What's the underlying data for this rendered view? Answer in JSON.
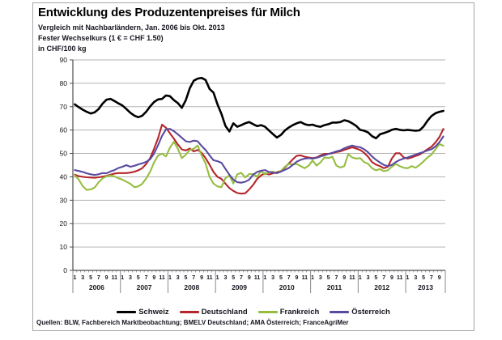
{
  "header": {
    "title": "Entwicklung des Produzentenpreises für Milch",
    "subtitle1": "Vergleich mit Nachbarländern, Jan. 2006 bis Okt. 2013",
    "subtitle2": "Fester Wechselkurs (1 € = CHF 1.50)",
    "subtitle3": "in CHF/100 kg"
  },
  "source_line": "Quellen: BLW, Fachbereich Marktbeobachtung; BMELV Deutschland; AMA Österreich; FranceAgriMer",
  "colors": {
    "grid": "#b3b3b3",
    "axis": "#4d4d4d",
    "frame": "#a6a6a6",
    "text": "#15151f",
    "schweiz": "#000000",
    "deutschland": "#b5262b",
    "frankreich": "#96bd40",
    "oesterreich": "#5a4a9f"
  },
  "chart_data": {
    "type": "line",
    "title": "Entwicklung des Produzentenpreises für Milch",
    "subtitle": "Vergleich mit Nachbarländern, Jan. 2006 bis Okt. 2013",
    "ylabel": "in CHF/100 kg",
    "grid": true,
    "legend_position": "bottom",
    "y_axis": {
      "min": 0,
      "max": 90,
      "step": 10
    },
    "x_axis": {
      "years": [
        2006,
        2007,
        2008,
        2009,
        2010,
        2011,
        2012,
        2013
      ],
      "months_in_last_year": 10,
      "month_tick_labels": [
        1,
        3,
        5,
        7,
        9,
        11
      ]
    },
    "series": [
      {
        "name": "Schweiz",
        "color": "#000000",
        "line_width": 2.6,
        "values": [
          71,
          69.8,
          68.7,
          67.8,
          67.1,
          67.6,
          69,
          71.3,
          73,
          73.3,
          72.4,
          71.4,
          70.5,
          69,
          67.4,
          66.2,
          65.5,
          66.1,
          67.8,
          70.1,
          72,
          73.1,
          73.3,
          74.8,
          74.5,
          72.8,
          71.5,
          69.5,
          72.8,
          77.9,
          81.1,
          82,
          82.3,
          81.4,
          77.6,
          76,
          71,
          66.9,
          61.8,
          59.4,
          62.9,
          61.4,
          62.1,
          62.9,
          63.4,
          62.5,
          61.7,
          62.1,
          61.4,
          59.8,
          58.3,
          56.8,
          57.9,
          59.8,
          61.1,
          62.1,
          62.9,
          63.4,
          62.5,
          62.1,
          62.3,
          61.7,
          61.4,
          62.1,
          62.5,
          63.2,
          63.2,
          63.4,
          64.2,
          63.8,
          62.9,
          61.8,
          60.1,
          59.7,
          59,
          57.4,
          56.5,
          58.2,
          58.7,
          59.3,
          60.1,
          60.5,
          60.1,
          59.9,
          60.1,
          59.9,
          59.7,
          59.9,
          61.5,
          64,
          66,
          67.2,
          67.8,
          68.2
        ]
      },
      {
        "name": "Deutschland",
        "color": "#b5262b",
        "line_width": 2.1,
        "values": [
          40.9,
          40.3,
          40,
          39.8,
          39.7,
          39.6,
          39.8,
          40.1,
          40.4,
          40.9,
          41.4,
          41.6,
          41.6,
          41.6,
          41.8,
          42.2,
          42.8,
          43.7,
          45.5,
          48,
          52,
          56.5,
          62.3,
          61,
          58.6,
          56.3,
          53.8,
          51.7,
          51.3,
          52.1,
          50.9,
          51.5,
          50.3,
          48,
          45.2,
          42.1,
          40,
          39.1,
          37.1,
          35.2,
          34,
          33.1,
          32.8,
          33,
          34.6,
          36.6,
          39.1,
          40.6,
          41.5,
          41,
          41.5,
          42,
          42.5,
          44,
          45.7,
          47.5,
          49,
          49.2,
          48.6,
          48.3,
          48,
          48.3,
          49.2,
          49.8,
          49.8,
          50.1,
          50.6,
          50.9,
          51.5,
          52.1,
          52.6,
          52.1,
          51.5,
          50.3,
          48.6,
          46.3,
          45.2,
          44.6,
          43.7,
          44.3,
          47.8,
          50.1,
          50.1,
          48.3,
          47.8,
          48.3,
          48.9,
          49.5,
          50.6,
          51.8,
          52.9,
          54.7,
          57,
          60.5
        ]
      },
      {
        "name": "Frankreich",
        "color": "#96bd40",
        "line_width": 2.1,
        "values": [
          40.6,
          38.8,
          36,
          34.4,
          34.6,
          35.4,
          37.7,
          39.4,
          40.2,
          40.6,
          40.2,
          39.4,
          38.8,
          37.9,
          37,
          35.6,
          35.9,
          37,
          39.3,
          42.2,
          46.2,
          49.1,
          49.9,
          48.7,
          52.5,
          55,
          52,
          48,
          49.5,
          51.5,
          52,
          53.4,
          49.2,
          45.7,
          40,
          37.1,
          35.9,
          35.6,
          39.4,
          40.6,
          37.1,
          41.1,
          41.7,
          39.7,
          41.2,
          41.2,
          40,
          42.5,
          41,
          42,
          42.2,
          41.5,
          42.5,
          44.3,
          45.5,
          45.3,
          45.5,
          44.6,
          43.7,
          44.8,
          47,
          44.8,
          46.2,
          48.3,
          48,
          48.6,
          44.8,
          44,
          44.6,
          49.7,
          48.3,
          47.8,
          48,
          46.3,
          45.6,
          43.7,
          42.8,
          43.3,
          42.4,
          42.8,
          44.3,
          45.5,
          44.6,
          43.9,
          43.7,
          44.6,
          43.9,
          45.1,
          46.6,
          48.3,
          49.5,
          51.8,
          54,
          53.3
        ]
      },
      {
        "name": "Österreich",
        "color": "#5a4a9f",
        "line_width": 2.1,
        "values": [
          42.9,
          42.5,
          42.1,
          41.5,
          41.1,
          40.8,
          41.1,
          41.6,
          41.5,
          42.3,
          42.9,
          43.8,
          44.3,
          45,
          44.3,
          44.7,
          45.3,
          45.8,
          46.4,
          47.5,
          50,
          53.5,
          57.5,
          60.3,
          60.5,
          59.5,
          58.2,
          56.7,
          55.2,
          54.9,
          55.5,
          55.2,
          53.2,
          51.5,
          49.2,
          47.1,
          46.7,
          46,
          43.4,
          40.9,
          38.8,
          37.7,
          37.5,
          37.9,
          38.8,
          40.9,
          42.1,
          42.6,
          42.9,
          42.1,
          41.8,
          41.6,
          42.2,
          43,
          43.8,
          45.1,
          46.5,
          47.3,
          47.8,
          48,
          47.8,
          48.1,
          48.7,
          49.2,
          49.8,
          50.3,
          50.9,
          51.3,
          52.2,
          52.9,
          53.4,
          52.9,
          52.7,
          51.8,
          50.5,
          48.7,
          47.3,
          46.1,
          45.1,
          44.6,
          45.1,
          46.3,
          47.2,
          47.8,
          48.3,
          48.9,
          49.5,
          50.1,
          50.6,
          51.3,
          51.8,
          53,
          54.8,
          57.3
        ]
      }
    ]
  }
}
